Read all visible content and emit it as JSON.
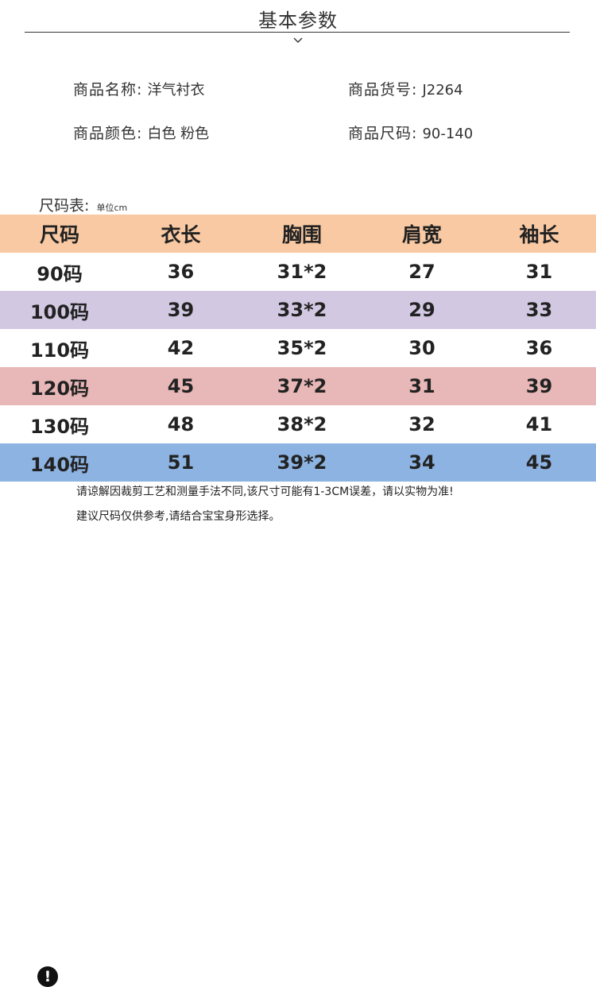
{
  "title": "基本参数",
  "info": {
    "name_label": "商品名称:",
    "name_value": "洋气衬衣",
    "code_label": "商品货号:",
    "code_value": "J2264",
    "color_label": "商品颜色:",
    "color_value": "白色 粉色",
    "size_label": "商品尺码:",
    "size_value": "90-140"
  },
  "size_table": {
    "label": "尺码表:",
    "unit": "单位cm",
    "headers": [
      "尺码",
      "衣长",
      "胸围",
      "肩宽",
      "袖长"
    ],
    "rows": [
      [
        "90码",
        "36",
        "31*2",
        "27",
        "31"
      ],
      [
        "100码",
        "39",
        "33*2",
        "29",
        "33"
      ],
      [
        "110码",
        "42",
        "35*2",
        "30",
        "36"
      ],
      [
        "120码",
        "45",
        "37*2",
        "31",
        "39"
      ],
      [
        "130码",
        "48",
        "38*2",
        "32",
        "41"
      ],
      [
        "140码",
        "51",
        "39*2",
        "34",
        "45"
      ]
    ],
    "row_colors": [
      "#f8c9a3",
      "#ffffff",
      "#d2c8e2",
      "#ffffff",
      "#e8b7b7",
      "#ffffff",
      "#8db3e2"
    ]
  },
  "notice": {
    "icon": "exclamation-icon",
    "icon_glyph": "!",
    "line1": "请谅解因裁剪工艺和测量手法不同,该尺寸可能有1-3CM误差，请以实物为准!",
    "line2": "建议尺码仅供参考,请结合宝宝身形选择。"
  }
}
